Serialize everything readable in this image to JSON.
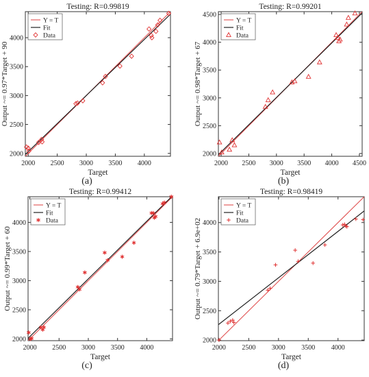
{
  "chart_data": [
    {
      "panel": "(a)",
      "type": "scatter",
      "title": "Testing: R=0.99819",
      "xlabel": "Target",
      "ylabel": "Output ~= 0.97*Target + 90",
      "xlim": [
        1950,
        4450
      ],
      "ylim": [
        1950,
        4450
      ],
      "xticks": [
        2000,
        2500,
        3000,
        3500,
        4000
      ],
      "yticks": [
        2000,
        2500,
        3000,
        3500,
        4000
      ],
      "marker": "diamond",
      "legend": {
        "position": "top-left",
        "entries": [
          "Y = T",
          "Fit",
          "Data"
        ]
      },
      "identity": [
        [
          1950,
          1950
        ],
        [
          4450,
          4450
        ]
      ],
      "fit": [
        [
          1950,
          1981.5
        ],
        [
          4450,
          4406.5
        ]
      ],
      "series": [
        {
          "name": "Data",
          "points": [
            [
              1970,
              2110
            ],
            [
              2000,
              2090
            ],
            [
              2010,
              2040
            ],
            [
              2180,
              2190
            ],
            [
              2230,
              2240
            ],
            [
              2240,
              2200
            ],
            [
              2820,
              2860
            ],
            [
              2850,
              2870
            ],
            [
              2940,
              2910
            ],
            [
              3280,
              3220
            ],
            [
              3330,
              3330
            ],
            [
              3580,
              3510
            ],
            [
              3780,
              3680
            ],
            [
              4080,
              4150
            ],
            [
              4120,
              4040
            ],
            [
              4130,
              4000
            ],
            [
              4200,
              4110
            ],
            [
              4230,
              4220
            ],
            [
              4270,
              4300
            ],
            [
              4420,
              4420
            ]
          ]
        }
      ]
    },
    {
      "panel": "(b)",
      "type": "scatter",
      "title": "Testing: R=0.99201",
      "xlabel": "Target",
      "ylabel": "Output ~= 0.98*Target + 67",
      "xlim": [
        1950,
        4550
      ],
      "ylim": [
        1950,
        4550
      ],
      "xticks": [
        2000,
        2500,
        3000,
        3500,
        4000,
        4500
      ],
      "yticks": [
        2000,
        2500,
        3000,
        3500,
        4000,
        4500
      ],
      "marker": "triangle",
      "legend": {
        "position": "top-left",
        "entries": [
          "Y = T",
          "Fit",
          "Data"
        ]
      },
      "identity": [
        [
          1950,
          1950
        ],
        [
          4550,
          4550
        ]
      ],
      "fit": [
        [
          1950,
          1978
        ],
        [
          4550,
          4526
        ]
      ],
      "series": [
        {
          "name": "Data",
          "points": [
            [
              1970,
              2200
            ],
            [
              2010,
              2020
            ],
            [
              2150,
              2070
            ],
            [
              2200,
              2240
            ],
            [
              2240,
              2150
            ],
            [
              2800,
              2840
            ],
            [
              2850,
              2960
            ],
            [
              2930,
              3100
            ],
            [
              3280,
              3280
            ],
            [
              3330,
              3300
            ],
            [
              3580,
              3380
            ],
            [
              3780,
              3640
            ],
            [
              4080,
              4130
            ],
            [
              4110,
              4080
            ],
            [
              4130,
              4020
            ],
            [
              4150,
              4050
            ],
            [
              4270,
              4320
            ],
            [
              4300,
              4440
            ],
            [
              4420,
              4520
            ]
          ]
        }
      ]
    },
    {
      "panel": "(c)",
      "type": "scatter",
      "title": "Testing: R=0.99412",
      "xlabel": "Target",
      "ylabel": "Output ~= 0.99*Target + 60",
      "xlim": [
        1970,
        4440
      ],
      "ylim": [
        1970,
        4440
      ],
      "xticks": [
        2000,
        2500,
        3000,
        3500,
        4000
      ],
      "yticks": [
        2000,
        2500,
        3000,
        3500,
        4000
      ],
      "marker": "asterisk",
      "legend": {
        "position": "top-left",
        "entries": [
          "Y = T",
          "Fit",
          "Data"
        ]
      },
      "identity": [
        [
          1970,
          1970
        ],
        [
          4440,
          4440
        ]
      ],
      "fit": [
        [
          1970,
          2010.3
        ],
        [
          4440,
          4455.6
        ]
      ],
      "series": [
        {
          "name": "Data",
          "points": [
            [
              1980,
              2110
            ],
            [
              2010,
              2000
            ],
            [
              2030,
              2010
            ],
            [
              2190,
              2200
            ],
            [
              2220,
              2160
            ],
            [
              2240,
              2200
            ],
            [
              2820,
              2890
            ],
            [
              2850,
              2850
            ],
            [
              2940,
              3140
            ],
            [
              3280,
              3480
            ],
            [
              3330,
              3350
            ],
            [
              3580,
              3410
            ],
            [
              3780,
              3650
            ],
            [
              4080,
              4160
            ],
            [
              4110,
              4160
            ],
            [
              4130,
              4080
            ],
            [
              4150,
              4100
            ],
            [
              4270,
              4320
            ],
            [
              4300,
              4340
            ],
            [
              4420,
              4440
            ]
          ]
        }
      ]
    },
    {
      "panel": "(d)",
      "type": "scatter",
      "title": "Testing: R=0.98419",
      "xlabel": "Target",
      "ylabel": "Output ~= 0.79*Target + 6.9e+02",
      "xlim": [
        1990,
        4440
      ],
      "ylim": [
        1990,
        4440
      ],
      "xticks": [
        2000,
        2500,
        3000,
        3500,
        4000
      ],
      "yticks": [
        2000,
        2500,
        3000,
        3500,
        4000
      ],
      "marker": "plus",
      "legend": {
        "position": "top-left",
        "entries": [
          "Y = T",
          "Fit",
          "Data"
        ]
      },
      "identity": [
        [
          1990,
          1990
        ],
        [
          4440,
          4440
        ]
      ],
      "fit": [
        [
          1990,
          2262
        ],
        [
          4440,
          4197.6
        ]
      ],
      "series": [
        {
          "name": "Data",
          "points": [
            [
              2000,
              2000
            ],
            [
              2150,
              2290
            ],
            [
              2190,
              2320
            ],
            [
              2230,
              2340
            ],
            [
              2250,
              2300
            ],
            [
              2820,
              2850
            ],
            [
              2860,
              2880
            ],
            [
              2950,
              3280
            ],
            [
              3280,
              3530
            ],
            [
              3330,
              3340
            ],
            [
              3580,
              3310
            ],
            [
              3780,
              3620
            ],
            [
              4080,
              3960
            ],
            [
              4110,
              3970
            ],
            [
              4130,
              3940
            ],
            [
              4150,
              3930
            ],
            [
              4300,
              4060
            ],
            [
              4420,
              4050
            ]
          ]
        }
      ]
    }
  ],
  "panel_labels": [
    "(a)",
    "(b)",
    "(c)",
    "(d)"
  ],
  "colors": {
    "identity": "#e05050",
    "fit": "#202020",
    "data": "#e03030",
    "axis": "#333333"
  }
}
